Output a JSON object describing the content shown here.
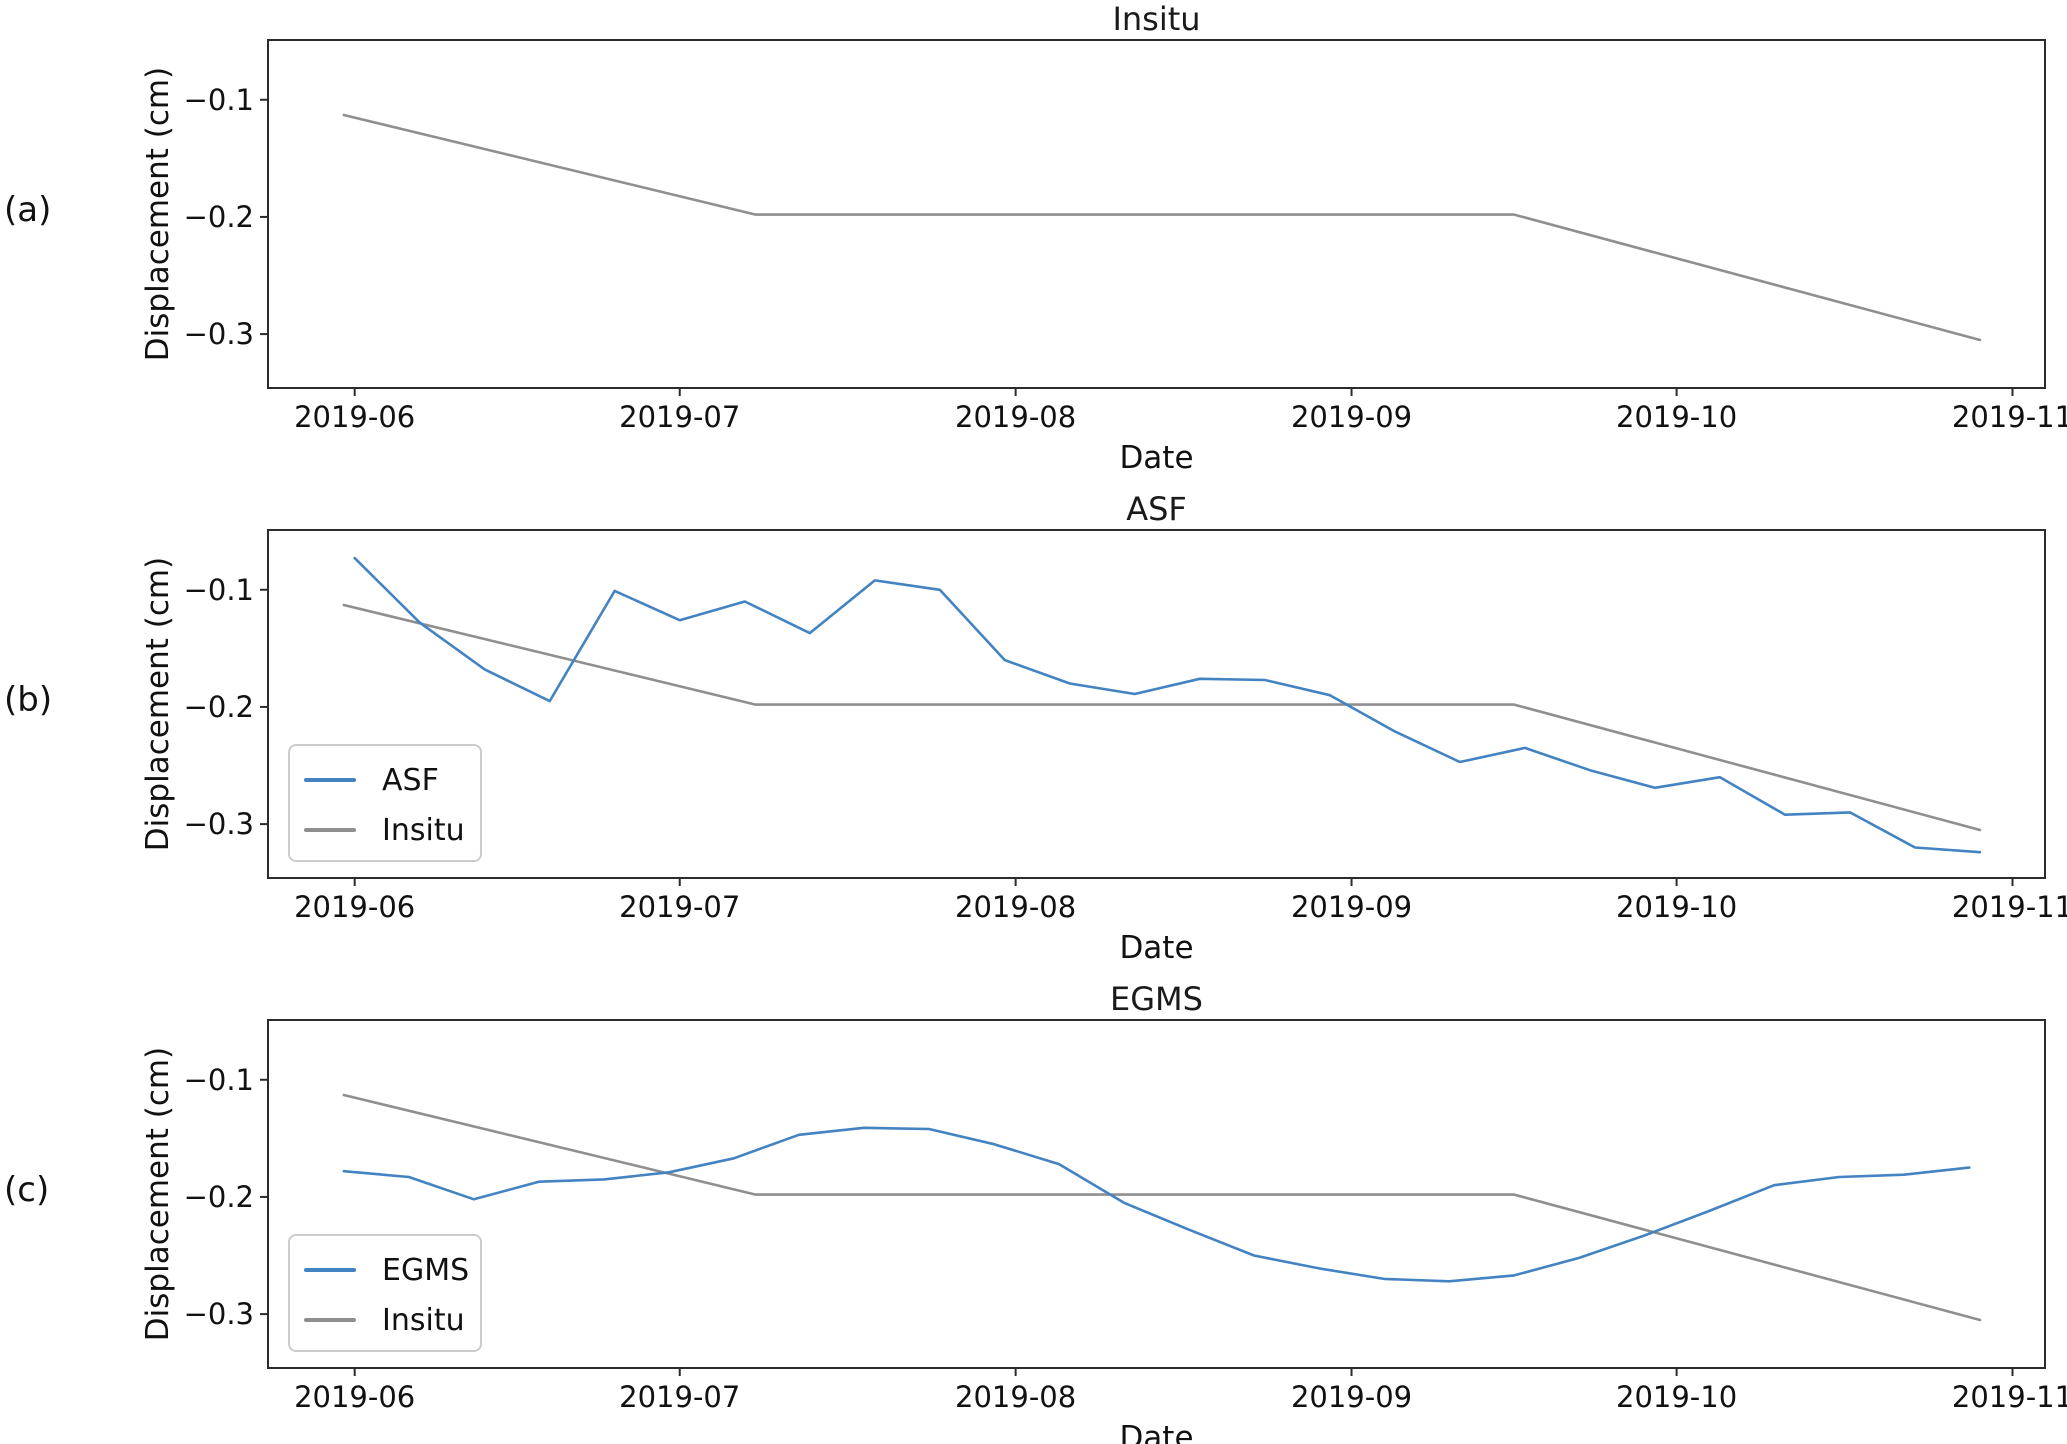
{
  "figure": {
    "panel_labels": [
      "(a)",
      "(b)",
      "(c)"
    ]
  },
  "colors": {
    "blue": "#4383c2",
    "gray": "#8f8f8f",
    "spine": "#2b2b2b",
    "legend_border": "#cccccc"
  },
  "chart_data": [
    {
      "type": "line",
      "title": "Insitu",
      "xlabel": "Date",
      "ylabel": "Displacement (cm)",
      "xlim": [
        "2019-05-24",
        "2019-11-04"
      ],
      "ylim": [
        -0.346,
        -0.049
      ],
      "xticks": [
        "2019-06-01",
        "2019-07-01",
        "2019-08-01",
        "2019-09-01",
        "2019-10-01",
        "2019-11-01"
      ],
      "xtick_labels": [
        "2019-06",
        "2019-07",
        "2019-08",
        "2019-09",
        "2019-10",
        "2019-11"
      ],
      "yticks": [
        -0.1,
        -0.2,
        -0.3
      ],
      "ytick_labels": [
        "−0.1",
        "−0.2",
        "−0.3"
      ],
      "grid": false,
      "legend": null,
      "series": [
        {
          "name": "Insitu",
          "color": "#8f8f8f",
          "x": [
            "2019-05-31",
            "2019-07-08",
            "2019-09-16",
            "2019-10-29"
          ],
          "y": [
            -0.113,
            -0.198,
            -0.198,
            -0.305
          ]
        }
      ]
    },
    {
      "type": "line",
      "title": "ASF",
      "xlabel": "Date",
      "ylabel": "Displacement (cm)",
      "xlim": [
        "2019-05-24",
        "2019-11-04"
      ],
      "ylim": [
        -0.346,
        -0.049
      ],
      "xticks": [
        "2019-06-01",
        "2019-07-01",
        "2019-08-01",
        "2019-09-01",
        "2019-10-01",
        "2019-11-01"
      ],
      "xtick_labels": [
        "2019-06",
        "2019-07",
        "2019-08",
        "2019-09",
        "2019-10",
        "2019-11"
      ],
      "yticks": [
        -0.1,
        -0.2,
        -0.3
      ],
      "ytick_labels": [
        "−0.1",
        "−0.2",
        "−0.3"
      ],
      "grid": false,
      "legend": {
        "position": "lower left",
        "entries": [
          "ASF",
          "Insitu"
        ]
      },
      "series": [
        {
          "name": "ASF",
          "color": "#4383c2",
          "x": [
            "2019-06-01",
            "2019-06-07",
            "2019-06-13",
            "2019-06-19",
            "2019-06-25",
            "2019-07-01",
            "2019-07-07",
            "2019-07-13",
            "2019-07-19",
            "2019-07-25",
            "2019-07-31",
            "2019-08-06",
            "2019-08-12",
            "2019-08-18",
            "2019-08-24",
            "2019-08-30",
            "2019-09-05",
            "2019-09-11",
            "2019-09-17",
            "2019-09-23",
            "2019-09-29",
            "2019-10-05",
            "2019-10-11",
            "2019-10-17",
            "2019-10-23",
            "2019-10-29"
          ],
          "y": [
            -0.073,
            -0.128,
            -0.168,
            -0.195,
            -0.101,
            -0.126,
            -0.11,
            -0.137,
            -0.092,
            -0.1,
            -0.16,
            -0.18,
            -0.189,
            -0.176,
            -0.177,
            -0.19,
            -0.221,
            -0.247,
            -0.235,
            -0.254,
            -0.269,
            -0.26,
            -0.292,
            -0.29,
            -0.32,
            -0.324
          ]
        },
        {
          "name": "Insitu",
          "color": "#8f8f8f",
          "x": [
            "2019-05-31",
            "2019-07-08",
            "2019-09-16",
            "2019-10-29"
          ],
          "y": [
            -0.113,
            -0.198,
            -0.198,
            -0.305
          ]
        }
      ]
    },
    {
      "type": "line",
      "title": "EGMS",
      "xlabel": "Date",
      "ylabel": "Displacement (cm)",
      "xlim": [
        "2019-05-24",
        "2019-11-04"
      ],
      "ylim": [
        -0.346,
        -0.049
      ],
      "xticks": [
        "2019-06-01",
        "2019-07-01",
        "2019-08-01",
        "2019-09-01",
        "2019-10-01",
        "2019-11-01"
      ],
      "xtick_labels": [
        "2019-06",
        "2019-07",
        "2019-08",
        "2019-09",
        "2019-10",
        "2019-11"
      ],
      "yticks": [
        -0.1,
        -0.2,
        -0.3
      ],
      "ytick_labels": [
        "−0.1",
        "−0.2",
        "−0.3"
      ],
      "grid": false,
      "legend": {
        "position": "lower left",
        "entries": [
          "EGMS",
          "Insitu"
        ]
      },
      "series": [
        {
          "name": "EGMS",
          "color": "#4383c2",
          "x": [
            "2019-05-31",
            "2019-06-06",
            "2019-06-12",
            "2019-06-18",
            "2019-06-24",
            "2019-06-30",
            "2019-07-06",
            "2019-07-12",
            "2019-07-18",
            "2019-07-24",
            "2019-07-30",
            "2019-08-05",
            "2019-08-11",
            "2019-08-17",
            "2019-08-23",
            "2019-08-29",
            "2019-09-04",
            "2019-09-10",
            "2019-09-16",
            "2019-09-22",
            "2019-09-28",
            "2019-10-04",
            "2019-10-10",
            "2019-10-16",
            "2019-10-22",
            "2019-10-28"
          ],
          "y": [
            -0.178,
            -0.183,
            -0.202,
            -0.187,
            -0.185,
            -0.179,
            -0.167,
            -0.147,
            -0.141,
            -0.142,
            -0.155,
            -0.172,
            -0.205,
            -0.228,
            -0.25,
            -0.261,
            -0.27,
            -0.272,
            -0.267,
            -0.252,
            -0.233,
            -0.212,
            -0.19,
            -0.183,
            -0.181,
            -0.175
          ]
        },
        {
          "name": "Insitu",
          "color": "#8f8f8f",
          "x": [
            "2019-05-31",
            "2019-07-08",
            "2019-09-16",
            "2019-10-29"
          ],
          "y": [
            -0.113,
            -0.198,
            -0.198,
            -0.305
          ]
        }
      ]
    }
  ]
}
